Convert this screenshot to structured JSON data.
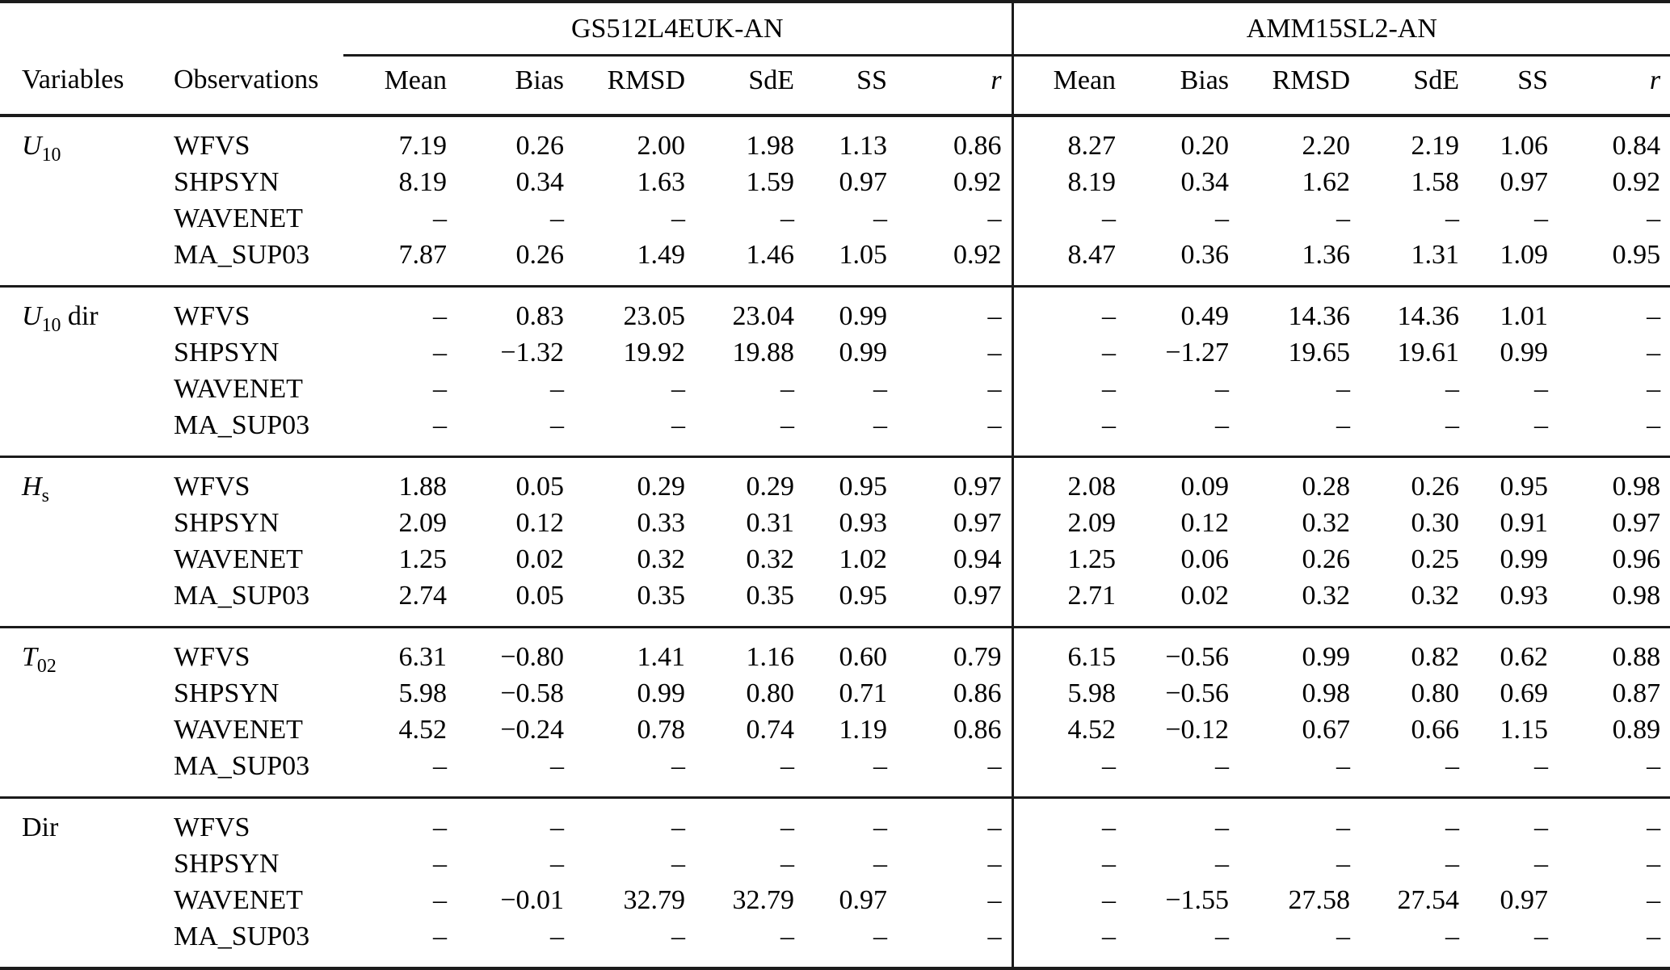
{
  "page": {
    "background": "#ffffff",
    "text_color": "#000000",
    "rule_color": "#1b1b1b"
  },
  "table": {
    "column_groups": [
      {
        "label": "GS512L4EUK-AN"
      },
      {
        "label": "AMM15SL2-AN"
      }
    ],
    "row_header_labels": {
      "variables": "Variables",
      "observations": "Observations"
    },
    "metric_headers": [
      "Mean",
      "Bias",
      "RMSD",
      "SdE",
      "SS",
      "r"
    ],
    "missing_value": "–",
    "sections": [
      {
        "variable": {
          "base": "U",
          "sub": "10",
          "suffix": "",
          "italic": true
        },
        "rows": [
          {
            "obs": "WFVS",
            "values": [
              "7.19",
              "0.26",
              "2.00",
              "1.98",
              "1.13",
              "0.86",
              "8.27",
              "0.20",
              "2.20",
              "2.19",
              "1.06",
              "0.84"
            ]
          },
          {
            "obs": "SHPSYN",
            "values": [
              "8.19",
              "0.34",
              "1.63",
              "1.59",
              "0.97",
              "0.92",
              "8.19",
              "0.34",
              "1.62",
              "1.58",
              "0.97",
              "0.92"
            ]
          },
          {
            "obs": "WAVENET",
            "values": [
              "–",
              "–",
              "–",
              "–",
              "–",
              "–",
              "–",
              "–",
              "–",
              "–",
              "–",
              "–"
            ]
          },
          {
            "obs": "MA_SUP03",
            "values": [
              "7.87",
              "0.26",
              "1.49",
              "1.46",
              "1.05",
              "0.92",
              "8.47",
              "0.36",
              "1.36",
              "1.31",
              "1.09",
              "0.95"
            ]
          }
        ]
      },
      {
        "variable": {
          "base": "U",
          "sub": "10",
          "suffix": " dir",
          "italic": true
        },
        "rows": [
          {
            "obs": "WFVS",
            "values": [
              "–",
              "0.83",
              "23.05",
              "23.04",
              "0.99",
              "–",
              "–",
              "0.49",
              "14.36",
              "14.36",
              "1.01",
              "–"
            ]
          },
          {
            "obs": "SHPSYN",
            "values": [
              "–",
              "−1.32",
              "19.92",
              "19.88",
              "0.99",
              "–",
              "–",
              "−1.27",
              "19.65",
              "19.61",
              "0.99",
              "–"
            ]
          },
          {
            "obs": "WAVENET",
            "values": [
              "–",
              "–",
              "–",
              "–",
              "–",
              "–",
              "–",
              "–",
              "–",
              "–",
              "–",
              "–"
            ]
          },
          {
            "obs": "MA_SUP03",
            "values": [
              "–",
              "–",
              "–",
              "–",
              "–",
              "–",
              "–",
              "–",
              "–",
              "–",
              "–",
              "–"
            ]
          }
        ]
      },
      {
        "variable": {
          "base": "H",
          "sub": "s",
          "suffix": "",
          "italic": true
        },
        "rows": [
          {
            "obs": "WFVS",
            "values": [
              "1.88",
              "0.05",
              "0.29",
              "0.29",
              "0.95",
              "0.97",
              "2.08",
              "0.09",
              "0.28",
              "0.26",
              "0.95",
              "0.98"
            ]
          },
          {
            "obs": "SHPSYN",
            "values": [
              "2.09",
              "0.12",
              "0.33",
              "0.31",
              "0.93",
              "0.97",
              "2.09",
              "0.12",
              "0.32",
              "0.30",
              "0.91",
              "0.97"
            ]
          },
          {
            "obs": "WAVENET",
            "values": [
              "1.25",
              "0.02",
              "0.32",
              "0.32",
              "1.02",
              "0.94",
              "1.25",
              "0.06",
              "0.26",
              "0.25",
              "0.99",
              "0.96"
            ]
          },
          {
            "obs": "MA_SUP03",
            "values": [
              "2.74",
              "0.05",
              "0.35",
              "0.35",
              "0.95",
              "0.97",
              "2.71",
              "0.02",
              "0.32",
              "0.32",
              "0.93",
              "0.98"
            ]
          }
        ]
      },
      {
        "variable": {
          "base": "T",
          "sub": "02",
          "suffix": "",
          "italic": true
        },
        "rows": [
          {
            "obs": "WFVS",
            "values": [
              "6.31",
              "−0.80",
              "1.41",
              "1.16",
              "0.60",
              "0.79",
              "6.15",
              "−0.56",
              "0.99",
              "0.82",
              "0.62",
              "0.88"
            ]
          },
          {
            "obs": "SHPSYN",
            "values": [
              "5.98",
              "−0.58",
              "0.99",
              "0.80",
              "0.71",
              "0.86",
              "5.98",
              "−0.56",
              "0.98",
              "0.80",
              "0.69",
              "0.87"
            ]
          },
          {
            "obs": "WAVENET",
            "values": [
              "4.52",
              "−0.24",
              "0.78",
              "0.74",
              "1.19",
              "0.86",
              "4.52",
              "−0.12",
              "0.67",
              "0.66",
              "1.15",
              "0.89"
            ]
          },
          {
            "obs": "MA_SUP03",
            "values": [
              "–",
              "–",
              "–",
              "–",
              "–",
              "–",
              "–",
              "–",
              "–",
              "–",
              "–",
              "–"
            ]
          }
        ]
      },
      {
        "variable": {
          "base": "Dir",
          "sub": "",
          "suffix": "",
          "italic": false
        },
        "rows": [
          {
            "obs": "WFVS",
            "values": [
              "–",
              "–",
              "–",
              "–",
              "–",
              "–",
              "–",
              "–",
              "–",
              "–",
              "–",
              "–"
            ]
          },
          {
            "obs": "SHPSYN",
            "values": [
              "–",
              "–",
              "–",
              "–",
              "–",
              "–",
              "–",
              "–",
              "–",
              "–",
              "–",
              "–"
            ]
          },
          {
            "obs": "WAVENET",
            "values": [
              "–",
              "−0.01",
              "32.79",
              "32.79",
              "0.97",
              "–",
              "–",
              "−1.55",
              "27.58",
              "27.54",
              "0.97",
              "–"
            ]
          },
          {
            "obs": "MA_SUP03",
            "values": [
              "–",
              "–",
              "–",
              "–",
              "–",
              "–",
              "–",
              "–",
              "–",
              "–",
              "–",
              "–"
            ]
          }
        ]
      }
    ]
  }
}
